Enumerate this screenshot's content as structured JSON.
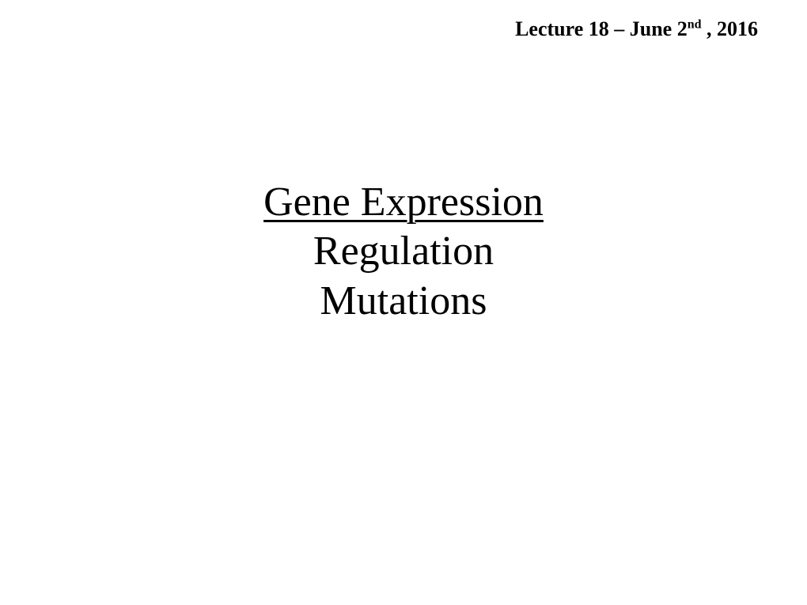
{
  "header": {
    "lecture_prefix": "Lecture 18 – June 2",
    "date_suffix": " , 2016",
    "ordinal": "nd"
  },
  "main": {
    "title": "Gene Expression",
    "subtitle1": "Regulation",
    "subtitle2": "Mutations"
  },
  "styling": {
    "background_color": "#ffffff",
    "text_color": "#000000",
    "font_family": "Comic Sans MS",
    "header_fontsize": 26,
    "title_fontsize": 52,
    "title_underline_thickness": 3
  }
}
